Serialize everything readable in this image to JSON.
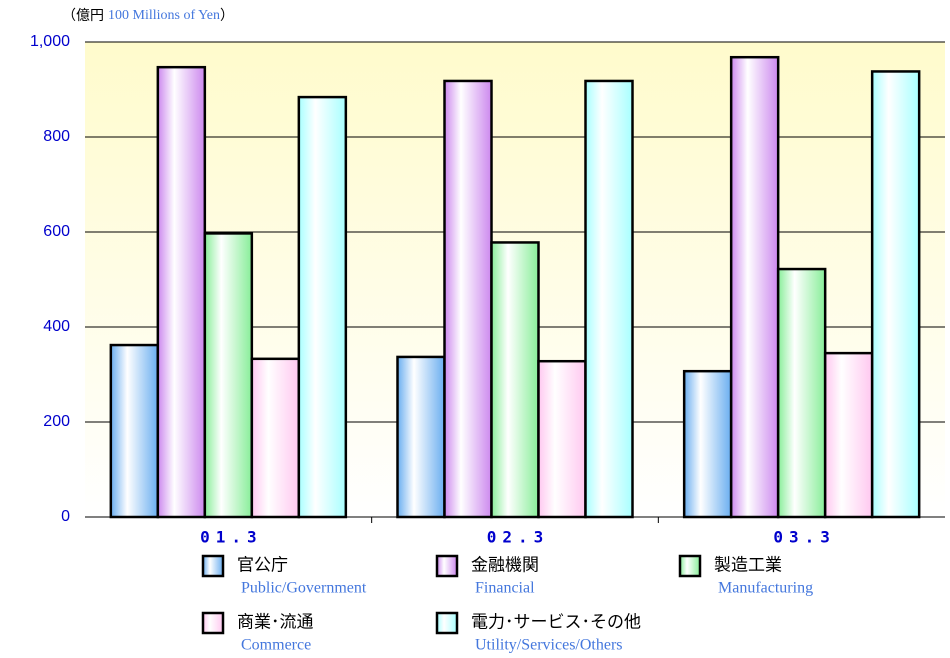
{
  "chart_data": {
    "type": "bar",
    "unit_label": [
      "（億円",
      "100 Millions of Yen",
      "）"
    ],
    "categories": [
      "01.3",
      "02.3",
      "03.3"
    ],
    "series": [
      {
        "name": "官公庁",
        "name_en": "Public/Government",
        "color": "#6aaef0",
        "values": [
          362,
          337,
          307
        ]
      },
      {
        "name": "金融機関",
        "name_en": "Financial",
        "color": "#cc88ee",
        "values": [
          947,
          918,
          968
        ]
      },
      {
        "name": "製造工業",
        "name_en": "Manufacturing",
        "color": "#88ee99",
        "values": [
          597,
          578,
          522
        ]
      },
      {
        "name": "商業･流通",
        "name_en": "Commerce",
        "color": "#ffc8f0",
        "values": [
          333,
          328,
          345
        ]
      },
      {
        "name": "電力･サービス･その他",
        "name_en": "Utility/Services/Others",
        "color": "#a8ffff",
        "values": [
          884,
          918,
          938
        ]
      }
    ],
    "ylim": [
      0,
      1000
    ],
    "yticks": [
      0,
      200,
      400,
      600,
      800,
      {
        "value": 1000,
        "label": "1,000"
      }
    ],
    "grid": true
  }
}
